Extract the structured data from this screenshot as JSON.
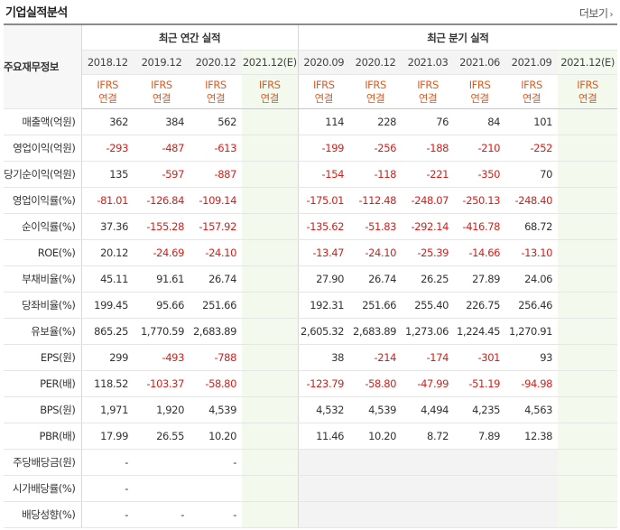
{
  "title": "기업실적분석",
  "more_label": "더보기",
  "row_header": "주요재무정보",
  "annual_header": "최근 연간 실적",
  "quarter_header": "최근 분기 실적",
  "annual_periods": [
    "2018.12",
    "2019.12",
    "2020.12",
    "2021.12(E)"
  ],
  "quarter_periods": [
    "2020.09",
    "2020.12",
    "2021.03",
    "2021.06",
    "2021.09",
    "2021.12(E)"
  ],
  "ifrs_line1": "IFRS",
  "ifrs_line2": "연결",
  "rows": [
    {
      "label": "매출액(억원)",
      "annual": [
        "362",
        "384",
        "562",
        ""
      ],
      "quarter": [
        "114",
        "228",
        "76",
        "84",
        "101",
        ""
      ]
    },
    {
      "label": "영업이익(억원)",
      "annual": [
        "-293",
        "-487",
        "-613",
        ""
      ],
      "quarter": [
        "-199",
        "-256",
        "-188",
        "-210",
        "-252",
        ""
      ]
    },
    {
      "label": "당기순이익(억원)",
      "annual": [
        "135",
        "-597",
        "-887",
        ""
      ],
      "quarter": [
        "-154",
        "-118",
        "-221",
        "-350",
        "70",
        ""
      ]
    },
    {
      "label": "영업이익률(%)",
      "annual": [
        "-81.01",
        "-126.84",
        "-109.14",
        ""
      ],
      "quarter": [
        "-175.01",
        "-112.48",
        "-248.07",
        "-250.13",
        "-248.40",
        ""
      ]
    },
    {
      "label": "순이익률(%)",
      "annual": [
        "37.36",
        "-155.28",
        "-157.92",
        ""
      ],
      "quarter": [
        "-135.62",
        "-51.83",
        "-292.14",
        "-416.78",
        "68.72",
        ""
      ]
    },
    {
      "label": "ROE(%)",
      "annual": [
        "20.12",
        "-24.69",
        "-24.10",
        ""
      ],
      "quarter": [
        "-13.47",
        "-24.10",
        "-25.39",
        "-14.66",
        "-13.10",
        ""
      ]
    },
    {
      "label": "부채비율(%)",
      "annual": [
        "45.11",
        "91.61",
        "26.74",
        ""
      ],
      "quarter": [
        "27.90",
        "26.74",
        "26.25",
        "27.89",
        "24.06",
        ""
      ]
    },
    {
      "label": "당좌비율(%)",
      "annual": [
        "199.45",
        "95.66",
        "251.66",
        ""
      ],
      "quarter": [
        "192.31",
        "251.66",
        "255.40",
        "226.75",
        "256.46",
        ""
      ]
    },
    {
      "label": "유보율(%)",
      "annual": [
        "865.25",
        "1,770.59",
        "2,683.89",
        ""
      ],
      "quarter": [
        "2,605.32",
        "2,683.89",
        "1,273.06",
        "1,224.45",
        "1,270.91",
        ""
      ]
    },
    {
      "label": "EPS(원)",
      "annual": [
        "299",
        "-493",
        "-788",
        ""
      ],
      "quarter": [
        "38",
        "-214",
        "-174",
        "-301",
        "93",
        ""
      ]
    },
    {
      "label": "PER(배)",
      "annual": [
        "118.52",
        "-103.37",
        "-58.80",
        ""
      ],
      "quarter": [
        "-123.79",
        "-58.80",
        "-47.99",
        "-51.19",
        "-94.98",
        ""
      ]
    },
    {
      "label": "BPS(원)",
      "annual": [
        "1,971",
        "1,920",
        "4,539",
        ""
      ],
      "quarter": [
        "4,532",
        "4,539",
        "4,494",
        "4,235",
        "4,563",
        ""
      ]
    },
    {
      "label": "PBR(배)",
      "annual": [
        "17.99",
        "26.55",
        "10.20",
        ""
      ],
      "quarter": [
        "11.46",
        "10.20",
        "8.72",
        "7.89",
        "12.38",
        ""
      ]
    },
    {
      "label": "주당배당금(원)",
      "annual": [
        "-",
        "",
        "-",
        ""
      ],
      "quarter": [
        "",
        "",
        "",
        "",
        "",
        ""
      ]
    },
    {
      "label": "시가배당률(%)",
      "annual": [
        "-",
        "",
        "",
        ""
      ],
      "quarter": [
        "",
        "",
        "",
        "",
        "",
        ""
      ]
    },
    {
      "label": "배당성향(%)",
      "annual": [
        "-",
        "-",
        "-",
        ""
      ],
      "quarter": [
        "",
        "",
        "",
        "",
        "",
        ""
      ]
    }
  ],
  "colors": {
    "negative": "#d0211c",
    "ifrs": "#e05a1c",
    "estimate_bg": "#f4f9ee"
  }
}
